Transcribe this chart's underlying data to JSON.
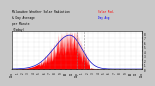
{
  "title": "Milwaukee Weather Solar Radiation & Day Average per Minute (Today)",
  "bg_color": "#c8c8c8",
  "plot_bg_color": "#ffffff",
  "bar_color": "#ff0000",
  "avg_line_color": "#0000cc",
  "grid_color": "#888888",
  "xlim": [
    0,
    1440
  ],
  "ylim": [
    0,
    850
  ],
  "ytick_positions": [
    0,
    100,
    200,
    300,
    400,
    500,
    600,
    700,
    800
  ],
  "ytick_labels": [
    "0",
    "1",
    "2",
    "3",
    "4",
    "5",
    "6",
    "7",
    "8"
  ],
  "xtick_positions": [
    0,
    60,
    120,
    180,
    240,
    300,
    360,
    420,
    480,
    540,
    600,
    660,
    720,
    780,
    840,
    900,
    960,
    1020,
    1080,
    1140,
    1200,
    1260,
    1320,
    1380,
    1440
  ],
  "xtick_labels": [
    "12a",
    "1",
    "2",
    "3",
    "4",
    "5",
    "6",
    "7",
    "8",
    "9",
    "10",
    "11",
    "12p",
    "1",
    "2",
    "3",
    "4",
    "5",
    "6",
    "7",
    "8",
    "9",
    "10",
    "11",
    "12a"
  ],
  "vlines": [
    720,
    800
  ],
  "legend_solar_color": "#ff0000",
  "legend_avg_color": "#0000ff"
}
